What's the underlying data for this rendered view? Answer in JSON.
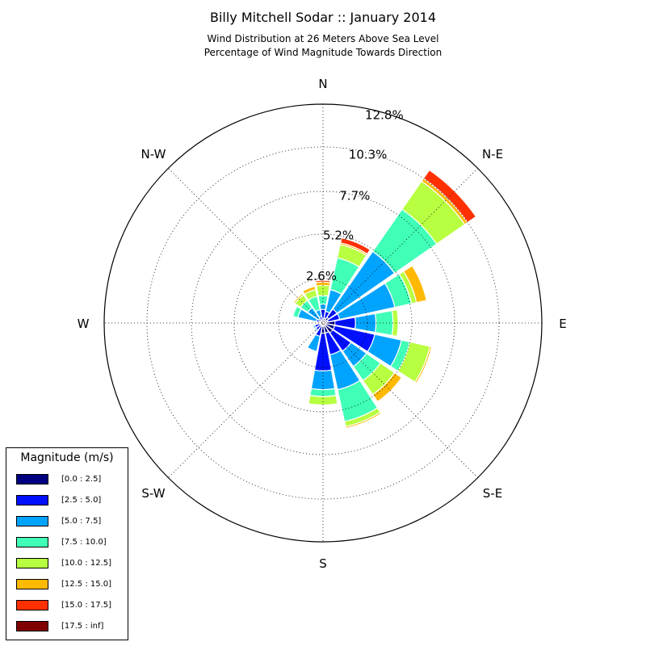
{
  "header": {
    "title": "Billy Mitchell Sodar :: January 2014",
    "subtitle_line1": "Wind Distribution at 26 Meters Above Sea Level",
    "subtitle_line2": "Percentage of Wind Magnitude Towards Direction"
  },
  "legend": {
    "title": "Magnitude (m/s)",
    "placement": "lower-left"
  },
  "chart_data": {
    "type": "windrose",
    "title": "Billy Mitchell Sodar :: January 2014",
    "subtitle": "Wind Distribution at 26 Meters Above Sea Level\nPercentage of Wind Magnitude Towards Direction",
    "radial_unit": "%",
    "radial_max": 12.8,
    "radial_ticks": [
      2.6,
      5.2,
      7.7,
      10.3,
      12.8
    ],
    "radial_tick_labels": [
      "2.6%",
      "5.2%",
      "7.7%",
      "10.3%",
      "12.8%"
    ],
    "grid": true,
    "direction_labels": [
      "N",
      "N-E",
      "E",
      "S-E",
      "S",
      "S-W",
      "W",
      "N-W"
    ],
    "bins": [
      {
        "label": "[0.0 : 2.5]",
        "color": "#000080"
      },
      {
        "label": "[2.5 : 5.0]",
        "color": "#0010ff"
      },
      {
        "label": "[5.0 : 7.5]",
        "color": "#00a4ff"
      },
      {
        "label": "[7.5 : 10.0]",
        "color": "#40ffb7"
      },
      {
        "label": "[10.0 : 12.5]",
        "color": "#b7ff40"
      },
      {
        "label": "[12.5 : 15.0]",
        "color": "#ffb900"
      },
      {
        "label": "[15.0 : 17.5]",
        "color": "#ff3000"
      },
      {
        "label": "[17.5 : inf]",
        "color": "#800000"
      }
    ],
    "sectors": [
      {
        "direction_deg": 0.0,
        "cumulative": [
          0.3,
          0.8,
          1.1,
          1.6,
          2.2,
          2.4,
          2.5,
          2.5
        ]
      },
      {
        "direction_deg": 22.5,
        "cumulative": [
          0.3,
          0.7,
          2.0,
          3.9,
          4.7,
          4.8,
          5.1,
          5.1
        ]
      },
      {
        "direction_deg": 45.0,
        "cumulative": [
          0.4,
          1.0,
          5.1,
          8.1,
          10.1,
          10.3,
          10.9,
          10.9
        ]
      },
      {
        "direction_deg": 67.5,
        "cumulative": [
          0.3,
          1.0,
          4.3,
          5.3,
          5.6,
          6.2,
          6.2,
          6.2
        ]
      },
      {
        "direction_deg": 90.0,
        "cumulative": [
          0.7,
          1.9,
          3.1,
          4.1,
          4.4,
          4.4,
          4.4,
          4.4
        ]
      },
      {
        "direction_deg": 112.5,
        "cumulative": [
          0.7,
          3.1,
          4.7,
          5.2,
          6.4,
          6.5,
          6.5,
          6.5
        ]
      },
      {
        "direction_deg": 135.0,
        "cumulative": [
          0.7,
          2.0,
          3.1,
          4.1,
          5.1,
          5.6,
          5.6,
          5.6
        ]
      },
      {
        "direction_deg": 157.5,
        "cumulative": [
          0.6,
          1.9,
          4.0,
          5.9,
          6.2,
          6.3,
          6.3,
          6.3
        ]
      },
      {
        "direction_deg": 180.0,
        "cumulative": [
          0.6,
          2.8,
          3.9,
          4.3,
          4.8,
          4.8,
          4.8,
          4.8
        ]
      },
      {
        "direction_deg": 202.5,
        "cumulative": [
          0.2,
          0.8,
          1.7,
          1.7,
          1.7,
          1.7,
          1.7,
          1.7
        ]
      },
      {
        "direction_deg": 225.0,
        "cumulative": [
          0.1,
          0.5,
          0.6,
          0.6,
          0.6,
          0.6,
          0.6,
          0.6
        ]
      },
      {
        "direction_deg": 247.5,
        "cumulative": [
          0.1,
          0.5,
          0.6,
          0.6,
          0.6,
          0.6,
          0.6,
          0.6
        ]
      },
      {
        "direction_deg": 270.0,
        "cumulative": [
          0.1,
          0.2,
          0.2,
          0.2,
          0.2,
          0.2,
          0.2,
          0.2
        ]
      },
      {
        "direction_deg": 292.5,
        "cumulative": [
          0.2,
          0.4,
          1.5,
          1.8,
          1.8,
          1.8,
          1.8,
          1.8
        ]
      },
      {
        "direction_deg": 315.0,
        "cumulative": [
          0.1,
          0.3,
          1.1,
          1.6,
          2.0,
          2.1,
          2.1,
          2.1
        ]
      },
      {
        "direction_deg": 337.5,
        "cumulative": [
          0.1,
          0.4,
          0.8,
          1.6,
          2.0,
          2.2,
          2.2,
          2.2
        ]
      }
    ]
  }
}
